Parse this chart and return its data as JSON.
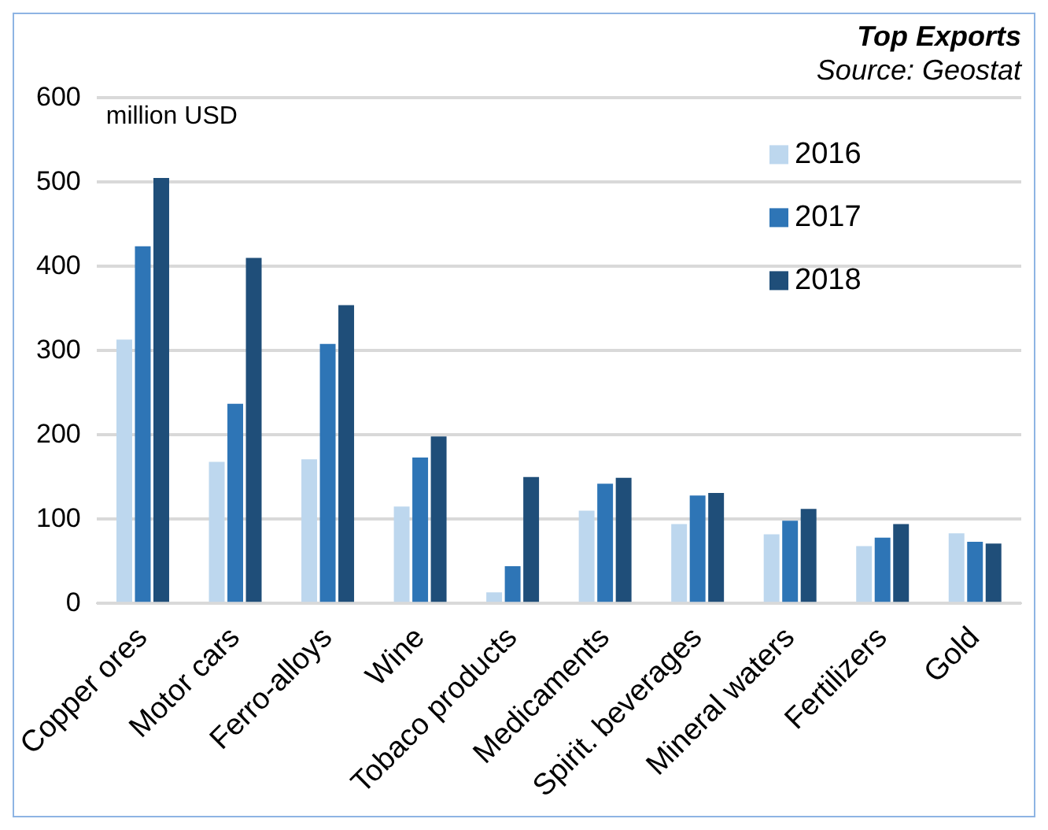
{
  "chart_data": {
    "type": "bar",
    "title": "Top Exports",
    "subtitle": "Source: Geostat",
    "ylabel": "million USD",
    "categories": [
      "Copper ores",
      "Motor cars",
      "Ferro-alloys",
      "Wine",
      "Tobaco products",
      "Medicaments",
      "Spirit. beverages",
      "Mineral waters",
      "Fertilizers",
      "Gold"
    ],
    "series": [
      {
        "name": "2016",
        "color": "#bdd7ee",
        "values": [
          313,
          168,
          171,
          115,
          13,
          110,
          94,
          82,
          68,
          83
        ]
      },
      {
        "name": "2017",
        "color": "#2e75b6",
        "values": [
          424,
          237,
          308,
          173,
          44,
          142,
          128,
          98,
          78,
          73
        ]
      },
      {
        "name": "2018",
        "color": "#1f4e79",
        "values": [
          505,
          410,
          354,
          198,
          150,
          149,
          131,
          112,
          94,
          71
        ]
      }
    ],
    "ylim": [
      0,
      600
    ],
    "yticks": [
      0,
      100,
      200,
      300,
      400,
      500,
      600
    ],
    "grid": "y",
    "legend": "top right"
  }
}
